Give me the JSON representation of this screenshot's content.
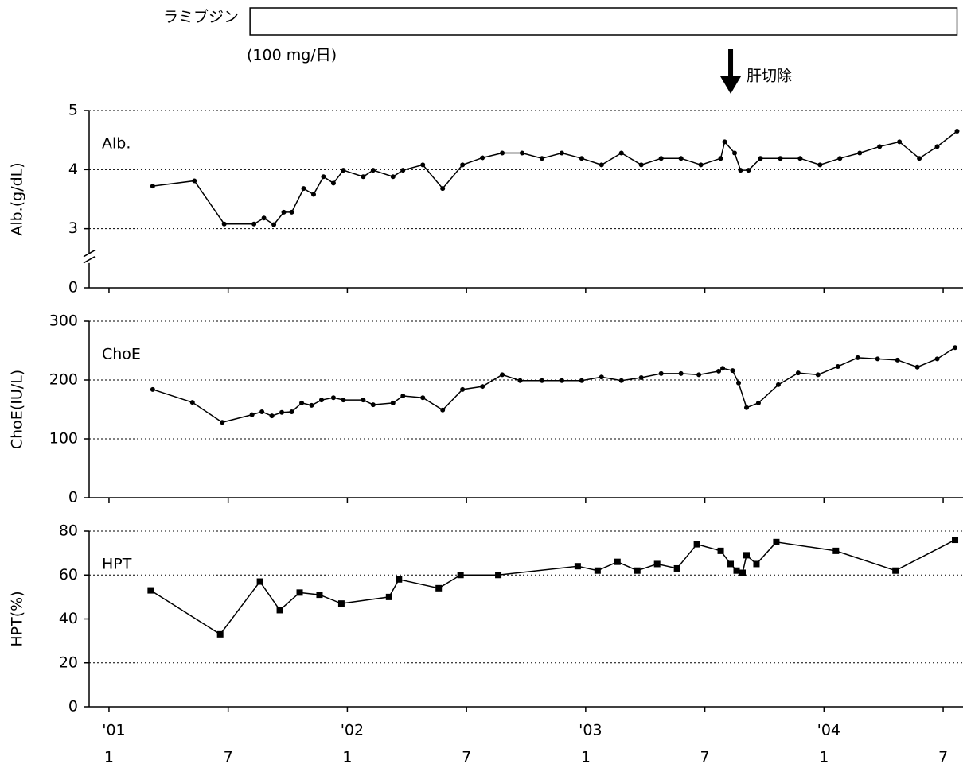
{
  "header": {
    "drug": "ラミブジン",
    "dose": "(100 mg/日)",
    "bar": [
      7.1,
      42.7
    ],
    "surgery": {
      "label": "肝切除",
      "x": 31.3
    }
  },
  "chart_data": [
    {
      "type": "line",
      "label": "Alb.",
      "ylabel": "Alb.(g/dL)",
      "marker": "circle",
      "color": "#000000",
      "xlim": [
        -1,
        43
      ],
      "xticks": [
        0,
        6,
        12,
        18,
        24,
        30,
        36,
        42
      ],
      "ylim": [
        0,
        5
      ],
      "ybreak": [
        0,
        3
      ],
      "yticks": [
        0,
        3,
        4,
        5
      ],
      "grid": true,
      "x": [
        2.2,
        4.3,
        5.8,
        7.3,
        7.8,
        8.3,
        8.8,
        9.2,
        9.8,
        10.3,
        10.8,
        11.3,
        11.8,
        12.8,
        13.3,
        14.3,
        14.8,
        15.8,
        16.8,
        17.8,
        18.8,
        19.8,
        20.8,
        21.8,
        22.8,
        23.8,
        24.8,
        25.8,
        26.8,
        27.8,
        28.8,
        29.8,
        30.8,
        31.0,
        31.5,
        31.8,
        32.2,
        32.8,
        33.8,
        34.8,
        35.8,
        36.8,
        37.8,
        38.8,
        39.8,
        40.8,
        41.7,
        42.7
      ],
      "values": [
        3.72,
        3.81,
        3.08,
        3.08,
        3.18,
        3.07,
        3.28,
        3.28,
        3.68,
        3.58,
        3.88,
        3.77,
        3.99,
        3.88,
        3.99,
        3.88,
        3.99,
        4.08,
        3.68,
        4.08,
        4.2,
        4.28,
        4.28,
        4.19,
        4.28,
        4.19,
        4.08,
        4.28,
        4.08,
        4.19,
        4.19,
        4.08,
        4.19,
        4.47,
        4.28,
        3.99,
        3.99,
        4.19,
        4.19,
        4.19,
        4.08,
        4.19,
        4.28,
        4.39,
        4.47,
        4.19,
        4.39,
        4.65
      ]
    },
    {
      "type": "line",
      "label": "ChoE",
      "ylabel": "ChoE(IU/L)",
      "marker": "circle",
      "color": "#000000",
      "xlim": [
        -1,
        43
      ],
      "xticks": [
        0,
        6,
        12,
        18,
        24,
        30,
        36,
        42
      ],
      "ylim": [
        0,
        300
      ],
      "yticks": [
        0,
        100,
        200,
        300
      ],
      "grid": true,
      "x": [
        2.2,
        4.2,
        5.7,
        7.2,
        7.7,
        8.2,
        8.7,
        9.2,
        9.7,
        10.2,
        10.7,
        11.3,
        11.8,
        12.8,
        13.3,
        14.3,
        14.8,
        15.8,
        16.8,
        17.8,
        18.8,
        19.8,
        20.7,
        21.8,
        22.8,
        23.8,
        24.8,
        25.8,
        26.8,
        27.8,
        28.8,
        29.7,
        30.7,
        30.9,
        31.4,
        31.7,
        32.1,
        32.7,
        33.7,
        34.7,
        35.7,
        36.7,
        37.7,
        38.7,
        39.7,
        40.7,
        41.7,
        42.6
      ],
      "values": [
        184,
        162,
        128,
        141,
        146,
        139,
        145,
        146,
        161,
        157,
        166,
        170,
        166,
        166,
        158,
        161,
        173,
        170,
        149,
        184,
        189,
        209,
        199,
        199,
        199,
        199,
        205,
        199,
        204,
        211,
        211,
        209,
        215,
        220,
        216,
        195,
        153,
        161,
        192,
        212,
        209,
        223,
        238,
        236,
        234,
        222,
        236,
        255
      ]
    },
    {
      "type": "line",
      "label": "HPT",
      "ylabel": "HPT(%)",
      "marker": "square",
      "color": "#000000",
      "xlim": [
        -1,
        43
      ],
      "xticks": [
        {
          "value": 0,
          "label": "1"
        },
        {
          "value": 6,
          "label": "7"
        },
        {
          "value": 12,
          "label": "1"
        },
        {
          "value": 18,
          "label": "7"
        },
        {
          "value": 24,
          "label": "1"
        },
        {
          "value": 30,
          "label": "7"
        },
        {
          "value": 36,
          "label": "1"
        },
        {
          "value": 42,
          "label": "7"
        }
      ],
      "year_ticks": [
        {
          "value": 0,
          "label": "'01"
        },
        {
          "value": 12,
          "label": "'02"
        },
        {
          "value": 24,
          "label": "'03"
        },
        {
          "value": 36,
          "label": "'04"
        }
      ],
      "ylim": [
        0,
        80
      ],
      "yticks": [
        0,
        20,
        40,
        60,
        80
      ],
      "grid": true,
      "x": [
        2.1,
        5.6,
        7.6,
        8.6,
        9.6,
        10.6,
        11.7,
        14.1,
        14.6,
        16.6,
        17.7,
        19.6,
        23.6,
        24.6,
        25.6,
        26.6,
        27.6,
        28.6,
        29.6,
        30.8,
        31.3,
        31.6,
        31.9,
        32.1,
        32.6,
        33.6,
        36.6,
        39.6,
        42.6
      ],
      "values": [
        53,
        33,
        57,
        44,
        52,
        51,
        47,
        50,
        58,
        54,
        60,
        60,
        64,
        62,
        66,
        62,
        65,
        63,
        74,
        71,
        65,
        62,
        61,
        69,
        65,
        75,
        71,
        62,
        76
      ]
    }
  ]
}
